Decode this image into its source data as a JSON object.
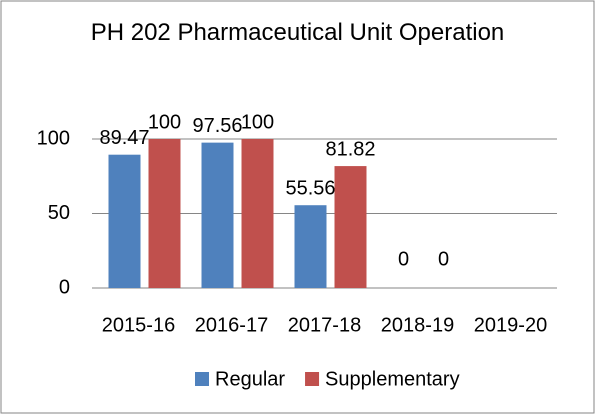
{
  "chart_data": {
    "type": "bar",
    "title": "PH 202 Pharmaceutical Unit Operation",
    "categories": [
      "2015-16",
      "2016-17",
      "2017-18",
      "2018-19",
      "2019-20"
    ],
    "series": [
      {
        "name": "Regular",
        "color": "#4f81bd",
        "values": [
          89.47,
          97.56,
          55.56,
          0,
          null
        ]
      },
      {
        "name": "Supplementary",
        "color": "#c0504d",
        "values": [
          100,
          100,
          81.82,
          0,
          null
        ]
      }
    ],
    "ylim": [
      0,
      100
    ],
    "yticks": [
      0,
      50,
      100
    ],
    "grid": true,
    "legend": "bottom"
  }
}
